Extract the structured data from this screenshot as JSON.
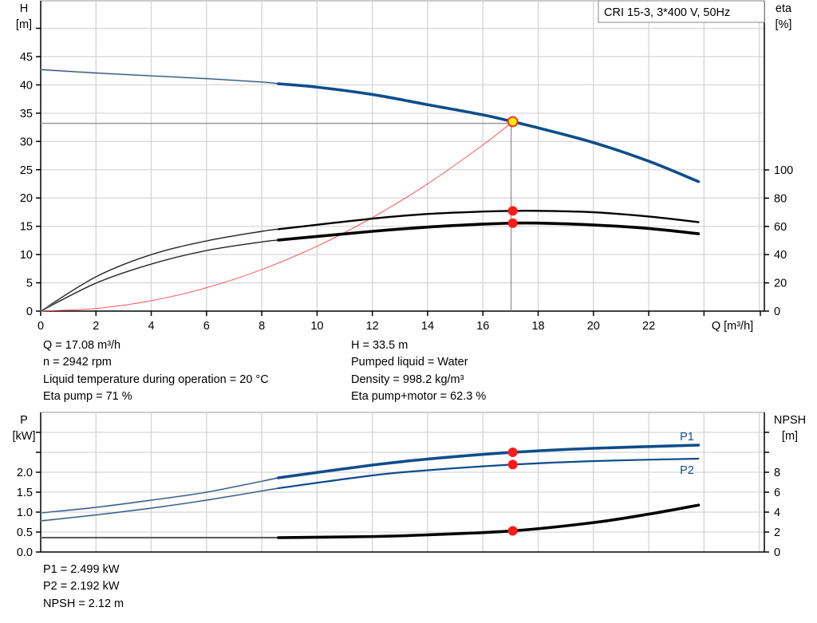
{
  "chart_data": [
    {
      "type": "line",
      "legend_box": "CRI 15-3, 3*400 V, 50Hz",
      "xlabel": "Q [m³/h]",
      "ylabel_left": [
        "H",
        "[m]"
      ],
      "ylabel_right": [
        "eta",
        "[%]"
      ],
      "x_ticks": [
        0,
        2,
        4,
        6,
        8,
        10,
        12,
        14,
        16,
        18,
        20,
        22
      ],
      "y_left_ticks": [
        0,
        5,
        10,
        15,
        20,
        25,
        30,
        35,
        40,
        45
      ],
      "y_right_ticks": [
        0,
        20,
        40,
        60,
        80,
        100
      ],
      "xlim": [
        0,
        26
      ],
      "ylim_left": [
        0,
        55
      ],
      "ylim_right": [
        0,
        220
      ],
      "grid": true,
      "thin_until_q": 8.6,
      "series": [
        {
          "key": "H",
          "axis": "left",
          "color": "#0e4d8a",
          "x": [
            0,
            2,
            4,
            6,
            8,
            8.6,
            10,
            12,
            14,
            16,
            17.08,
            18,
            20,
            22,
            23.8
          ],
          "y": [
            42.7,
            42.1,
            41.6,
            41.1,
            40.5,
            40.2,
            39.6,
            38.3,
            36.5,
            34.7,
            33.5,
            32.4,
            29.8,
            26.5,
            22.9
          ]
        },
        {
          "key": "eta_pump",
          "axis": "right",
          "color": "#000000",
          "x": [
            0,
            2,
            4,
            6,
            8,
            8.6,
            12,
            14,
            16,
            17.08,
            18,
            20,
            22,
            23.8
          ],
          "y": [
            0,
            24.3,
            40,
            49.7,
            56.5,
            58,
            65.5,
            68.8,
            70.5,
            71,
            71,
            70,
            67,
            63
          ]
        },
        {
          "key": "eta_pump_motor",
          "axis": "right",
          "color": "#000000",
          "x": [
            0,
            2,
            4,
            6,
            8,
            8.6,
            12,
            14,
            16,
            17.08,
            18,
            20,
            22,
            23.8
          ],
          "y": [
            0,
            19.8,
            33.3,
            42.9,
            49,
            50.3,
            56.5,
            59.5,
            61.6,
            62.3,
            62.3,
            61,
            58.5,
            54.8
          ]
        },
        {
          "key": "system_curve",
          "axis": "left",
          "color": "#ff4040",
          "x": [
            0,
            2,
            4,
            6,
            8,
            10,
            12,
            14,
            16,
            17.08
          ],
          "y": [
            0,
            0.46,
            1.84,
            4.13,
            7.35,
            11.48,
            16.53,
            22.5,
            29.38,
            33.5
          ]
        }
      ],
      "duty_point": {
        "q": 17.08,
        "h": 33.5,
        "eta_pump": 71,
        "eta_pump_motor": 62.3
      }
    },
    {
      "type": "line",
      "ylabel_left": [
        "P",
        "[kW]"
      ],
      "ylabel_right": [
        "NPSH",
        "[m]"
      ],
      "y_left_ticks": [
        "0.0",
        "0.5",
        "1.0",
        "1.5",
        "2.0"
      ],
      "y_right_ticks": [
        0,
        2,
        4,
        6,
        8
      ],
      "xlim": [
        0,
        26
      ],
      "ylim_left": [
        0,
        3.5
      ],
      "ylim_right": [
        0,
        14
      ],
      "grid": true,
      "series": [
        {
          "key": "P1",
          "name": "P1",
          "axis": "left",
          "color": "#0e4d8a",
          "x": [
            0,
            2,
            4,
            6,
            8.6,
            12,
            14,
            17.08,
            20,
            23.8
          ],
          "y": [
            0.98,
            1.12,
            1.3,
            1.5,
            1.86,
            2.18,
            2.33,
            2.499,
            2.6,
            2.68
          ]
        },
        {
          "key": "P2",
          "name": "P2",
          "axis": "left",
          "color": "#0e4d8a",
          "x": [
            0,
            2,
            4,
            6,
            8.6,
            12,
            14,
            17.08,
            20,
            23.8
          ],
          "y": [
            0.78,
            0.93,
            1.1,
            1.3,
            1.6,
            1.92,
            2.05,
            2.192,
            2.28,
            2.34
          ]
        },
        {
          "key": "NPSH",
          "axis": "right",
          "color": "#000000",
          "x": [
            0,
            4,
            8.6,
            12,
            14,
            17.08,
            20,
            22,
            23.8
          ],
          "y": [
            1.44,
            1.44,
            1.44,
            1.55,
            1.72,
            2.12,
            2.95,
            3.8,
            4.7
          ]
        }
      ],
      "duty_point": {
        "q": 17.08,
        "p1": 2.499,
        "p2": 2.192,
        "npsh": 2.12
      }
    }
  ],
  "info_top_left": [
    "Q = 17.08 m³/h",
    "n = 2942 rpm",
    "Liquid temperature during operation = 20 °C",
    "Eta pump = 71 %"
  ],
  "info_top_right": [
    "H = 33.5 m",
    "Pumped liquid = Water",
    "Density = 998.2 kg/m³",
    "Eta pump+motor = 62.3 %"
  ],
  "info_bottom": [
    "P1 = 2.499 kW",
    "P2 = 2.192 kW",
    "NPSH = 2.12 m"
  ]
}
